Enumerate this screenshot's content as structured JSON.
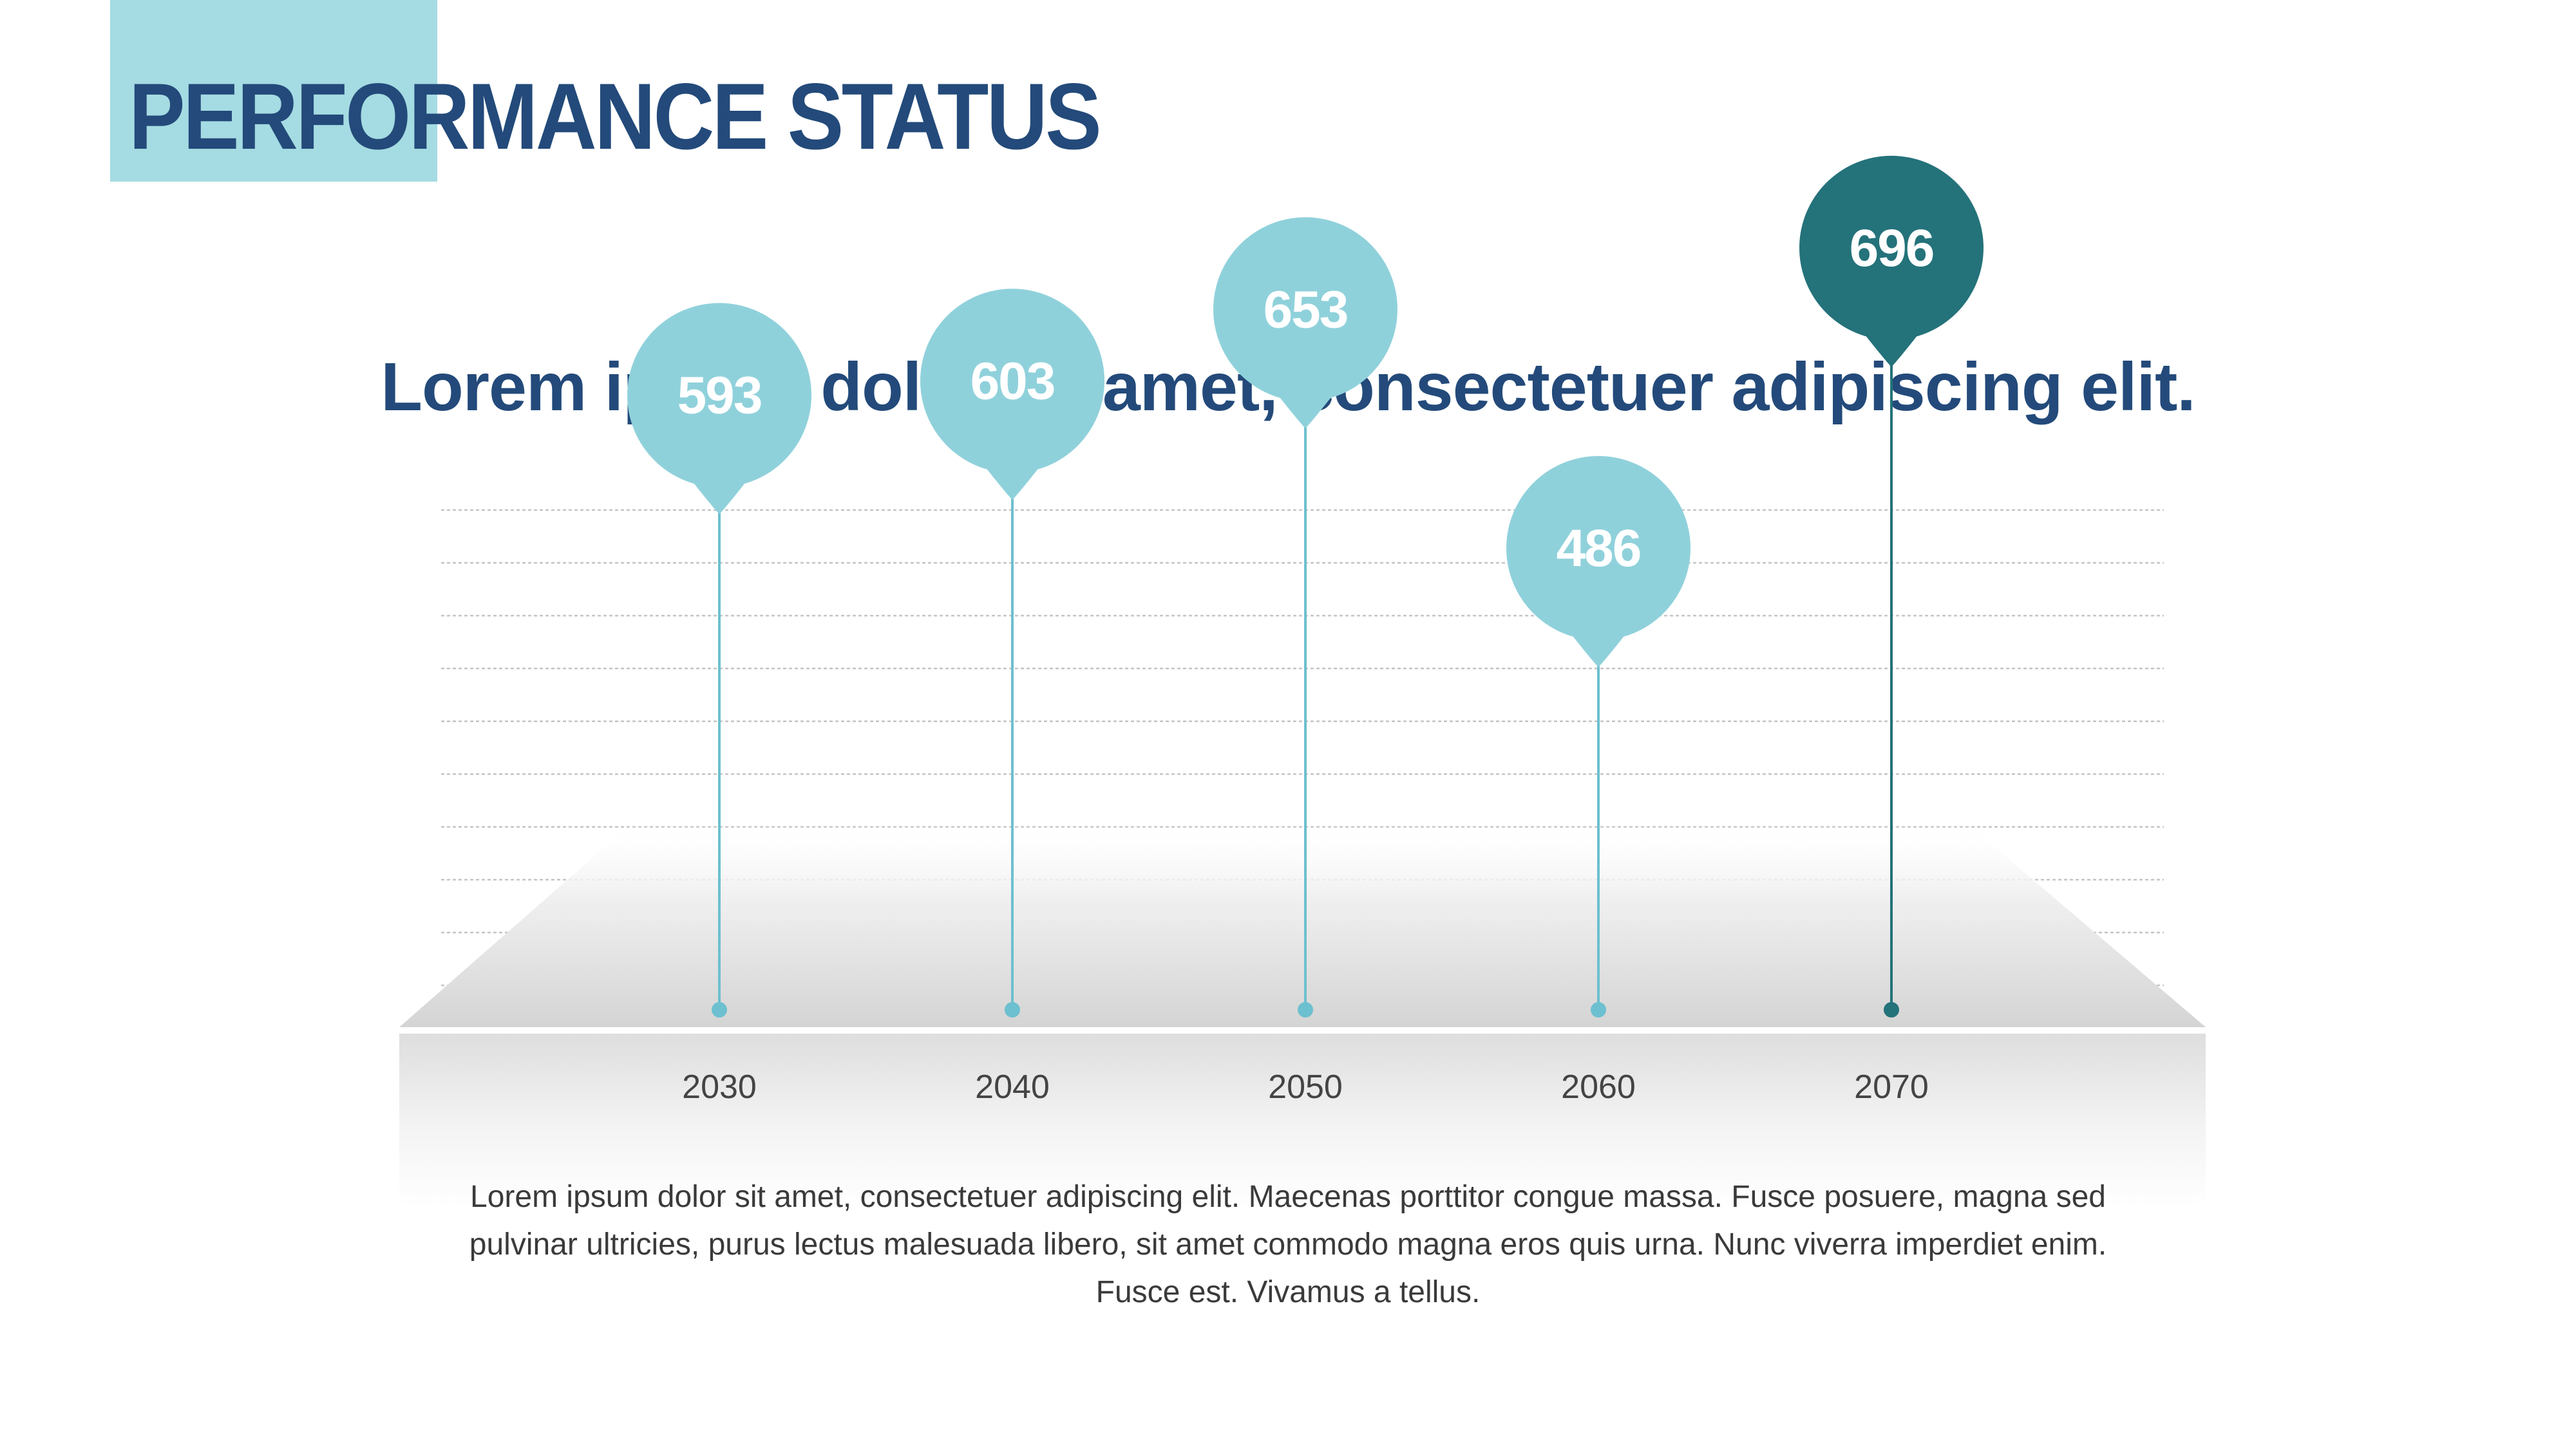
{
  "slide": {
    "title": "PERFORMANCE STATUS",
    "subtitle": "Lorem ipsum dolor sit amet, consectetuer adipiscing elit.",
    "description": "Lorem ipsum dolor sit amet, consectetuer adipiscing elit. Maecenas porttitor congue massa. Fusce posuere, magna sed pulvinar ultricies, purus lectus malesuada libero, sit amet commodo magna eros quis urna. Nunc viverra imperdiet enim. Fusce est. Vivamus a tellus."
  },
  "colors": {
    "title": "#234a7a",
    "title_accent": "#a5dbe2",
    "marker": "#8fd1db",
    "marker_stem": "#6cc0cf",
    "highlight": "#24727a",
    "grid": "#c4c4c4",
    "axis_label": "#444444"
  },
  "chart_data": {
    "type": "scatter",
    "style": "pin markers with data labels",
    "categories": [
      "2030",
      "2040",
      "2050",
      "2060",
      "2070"
    ],
    "values": [
      593,
      603,
      653,
      486,
      696
    ],
    "highlight_index": 4,
    "title": "",
    "xlabel": "",
    "ylabel": "",
    "ylim": [
      300,
      720
    ],
    "grid": true,
    "legend": "none"
  }
}
